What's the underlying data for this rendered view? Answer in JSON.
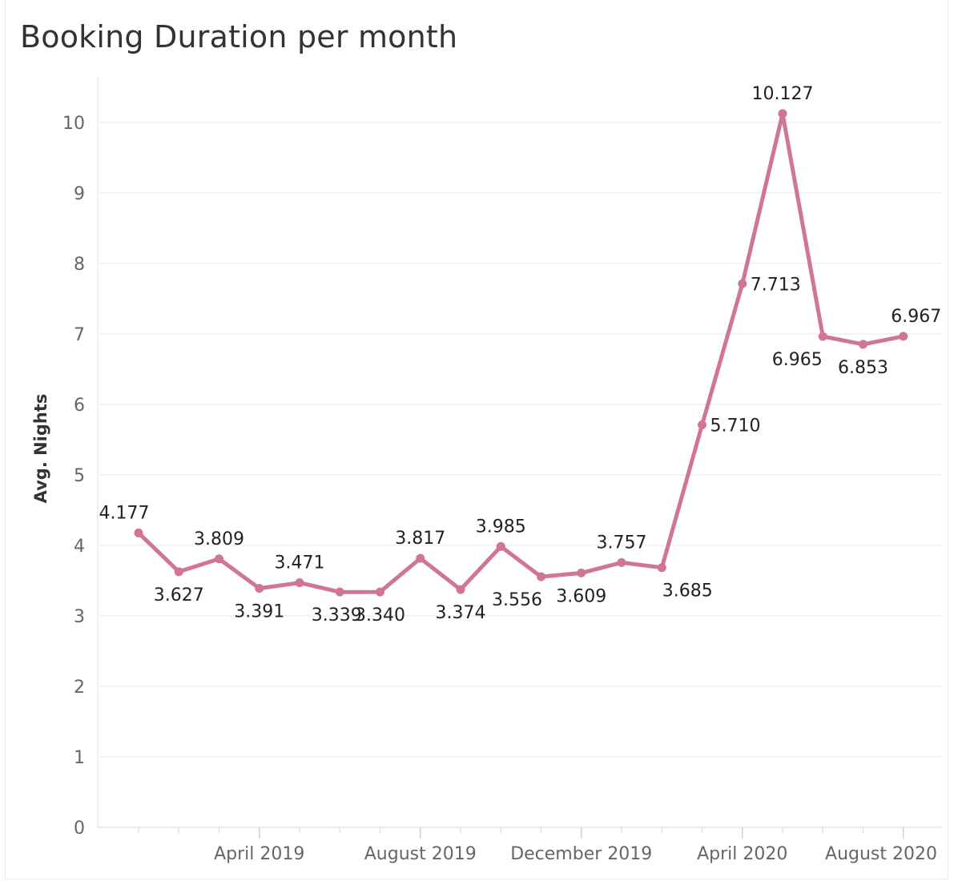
{
  "title": "Booking Duration per month",
  "chart_data": {
    "type": "line",
    "title": "Booking Duration per month",
    "xlabel": "",
    "ylabel": "Avg. Nights",
    "ylim": [
      0,
      10.7
    ],
    "yticks": [
      "0",
      "1",
      "2",
      "3",
      "4",
      "5",
      "6",
      "7",
      "8",
      "9",
      "10"
    ],
    "xtick_labels": [
      "April 2019",
      "August 2019",
      "December 2019",
      "April 2020",
      "August 2020"
    ],
    "x": [
      "2019-01",
      "2019-02",
      "2019-03",
      "2019-04",
      "2019-05",
      "2019-06",
      "2019-07",
      "2019-08",
      "2019-09",
      "2019-10",
      "2019-11",
      "2019-12",
      "2020-01",
      "2020-02",
      "2020-03",
      "2020-04",
      "2020-05",
      "2020-06",
      "2020-07",
      "2020-08"
    ],
    "values": [
      4.177,
      3.627,
      3.809,
      3.391,
      3.471,
      3.339,
      3.34,
      3.817,
      3.374,
      3.985,
      3.556,
      3.609,
      3.757,
      3.685,
      5.71,
      7.713,
      10.127,
      6.965,
      6.853,
      6.967
    ],
    "labels": [
      "4.177",
      "3.627",
      "3.809",
      "3.391",
      "3.471",
      "3.339",
      "3.340",
      "3.817",
      "3.374",
      "3.985",
      "3.556",
      "3.609",
      "3.757",
      "3.685",
      "5.710",
      "7.713",
      "10.127",
      "6.965",
      "6.853",
      "6.967"
    ],
    "line_color": "#d07595",
    "grid": true
  }
}
